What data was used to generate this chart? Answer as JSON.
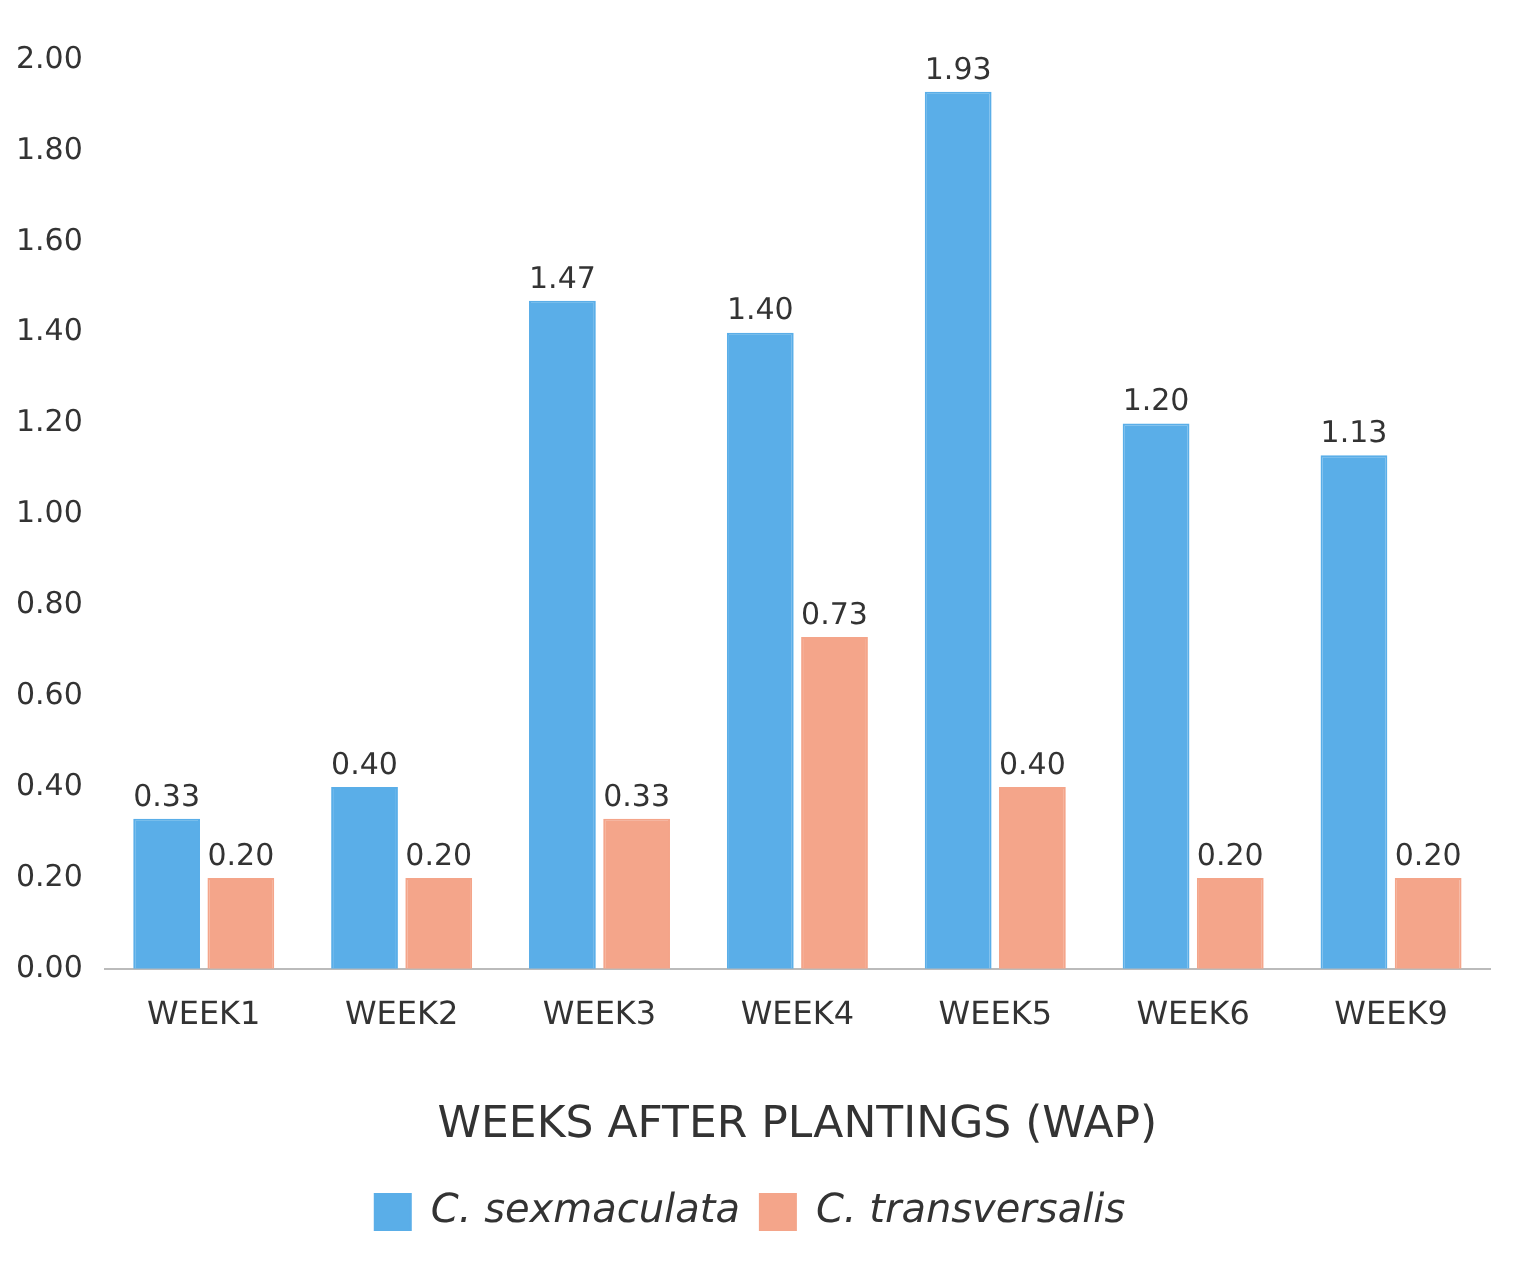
{
  "chart_data": {
    "type": "bar",
    "xlabel": "WEEKS AFTER PLANTINGS (WAP)",
    "categories": [
      "WEEK1",
      "WEEK2",
      "WEEK3",
      "WEEK4",
      "WEEK5",
      "WEEK6",
      "WEEK9"
    ],
    "series": [
      {
        "name": "C. sexmaculata",
        "color": "#5aaee8",
        "values": [
          0.33,
          0.4,
          1.47,
          1.4,
          1.93,
          1.2,
          1.13
        ],
        "value_labels": [
          "0.33",
          "0.40",
          "1.47",
          "1.40",
          "1.93",
          "1.20",
          "1.13"
        ]
      },
      {
        "name": "C. transversalis",
        "color": "#f4a58a",
        "values": [
          0.2,
          0.2,
          0.33,
          0.73,
          0.4,
          0.2,
          0.2
        ],
        "value_labels": [
          "0.20",
          "0.20",
          "0.33",
          "0.73",
          "0.40",
          "0.20",
          "0.20"
        ]
      }
    ],
    "ylim": [
      0,
      2
    ],
    "yticks": [
      {
        "value": 0,
        "label": "0.00"
      },
      {
        "value": 0.2,
        "label": "0.20"
      },
      {
        "value": 0.4,
        "label": "0.40"
      },
      {
        "value": 0.6,
        "label": "0.60"
      },
      {
        "value": 0.8,
        "label": "0.80"
      },
      {
        "value": 1,
        "label": "1.00"
      },
      {
        "value": 1.2,
        "label": "1.20"
      },
      {
        "value": 1.4,
        "label": "1.40"
      },
      {
        "value": 1.6,
        "label": "1.60"
      },
      {
        "value": 1.8,
        "label": "1.80"
      },
      {
        "value": 2,
        "label": "2.00"
      }
    ],
    "grid": false,
    "legend": "bottom"
  }
}
